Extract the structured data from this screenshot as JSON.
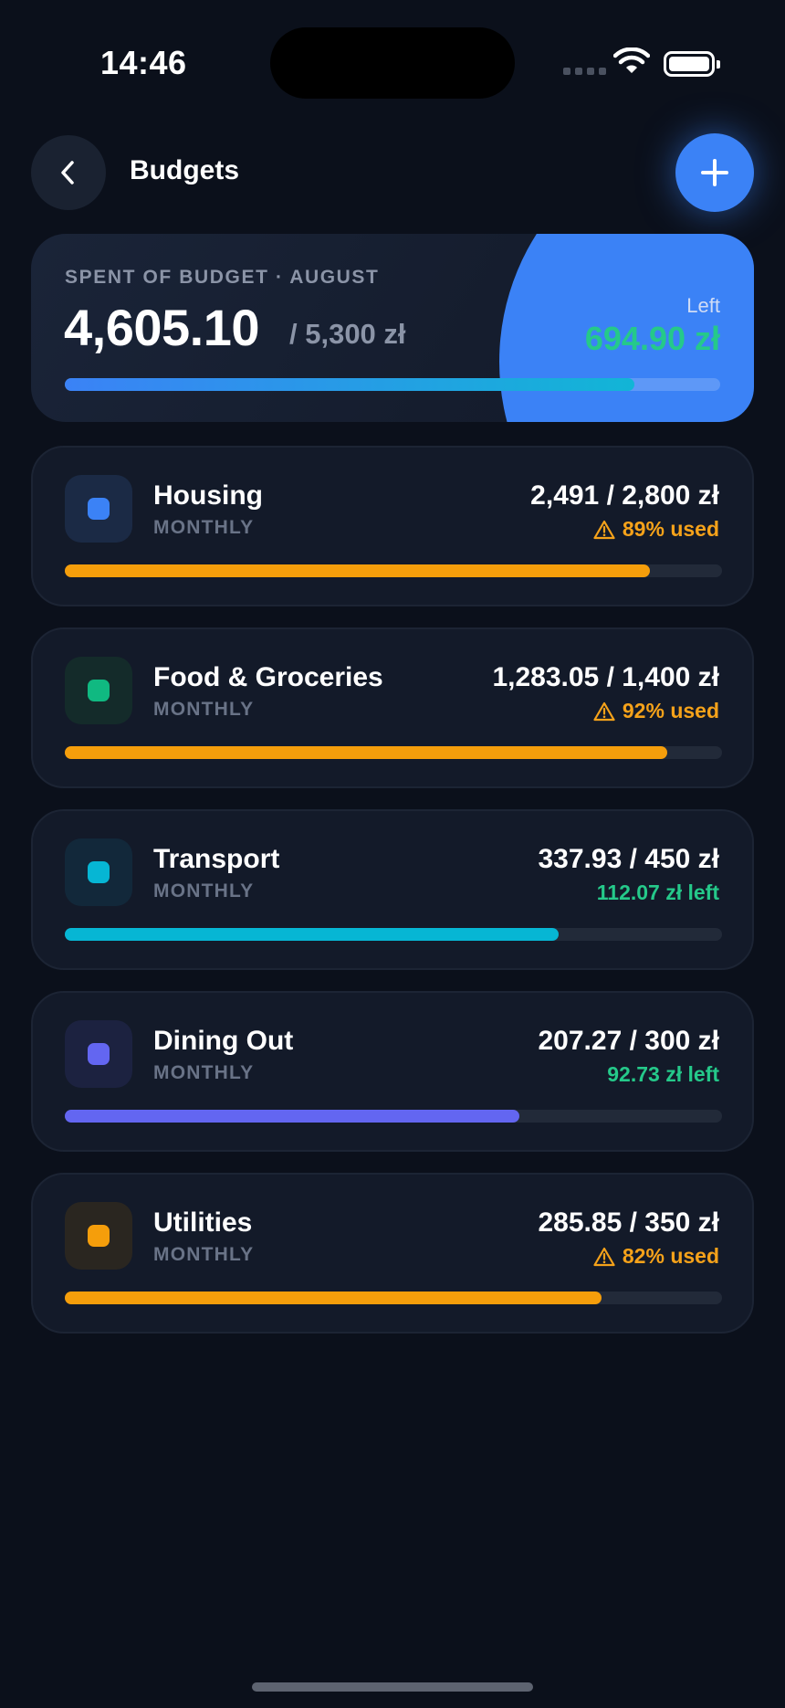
{
  "status_bar": {
    "time": "14:46"
  },
  "header": {
    "title": "Budgets"
  },
  "summary": {
    "label": "SPENT OF BUDGET · AUGUST",
    "spent": "4,605.10",
    "total": "/ 5,300 zł",
    "left_label": "Left",
    "left_value": "694.90 zł",
    "progress": 0.869,
    "colors": {
      "bar_start": "#3b82f6",
      "bar_end": "#12b5d6",
      "left_value": "#25c98a"
    }
  },
  "budgets": [
    {
      "name": "Housing",
      "period": "MONTHLY",
      "amount": "2,491 / 2,800 zł",
      "status": "89% used",
      "status_type": "warn",
      "progress": 0.89,
      "color": "#f59e0b",
      "icon_color": "#3b82f6",
      "icon_bg": "#1b2a45",
      "icon": "square-icon"
    },
    {
      "name": "Food & Groceries",
      "period": "MONTHLY",
      "amount": "1,283.05 / 1,400 zł",
      "status": "92% used",
      "status_type": "warn",
      "progress": 0.917,
      "color": "#f59e0b",
      "icon_color": "#10b981",
      "icon_bg": "#142b2a",
      "icon": "square-icon"
    },
    {
      "name": "Transport",
      "period": "MONTHLY",
      "amount": "337.93 / 450 zł",
      "status": "112.07 zł left",
      "status_type": "ok",
      "progress": 0.751,
      "color": "#06b6d4",
      "icon_color": "#06b6d4",
      "icon_bg": "#12283a",
      "icon": "square-icon"
    },
    {
      "name": "Dining Out",
      "period": "MONTHLY",
      "amount": "207.27 / 300 zł",
      "status": "92.73 zł left",
      "status_type": "ok",
      "progress": 0.691,
      "color": "#6366f1",
      "icon_color": "#6366f1",
      "icon_bg": "#1c2240",
      "icon": "square-icon"
    },
    {
      "name": "Utilities",
      "period": "MONTHLY",
      "amount": "285.85 / 350 zł",
      "status": "82% used",
      "status_type": "warn",
      "progress": 0.817,
      "color": "#f59e0b",
      "icon_color": "#f59e0b",
      "icon_bg": "#2a2620",
      "icon": "square-icon"
    }
  ]
}
